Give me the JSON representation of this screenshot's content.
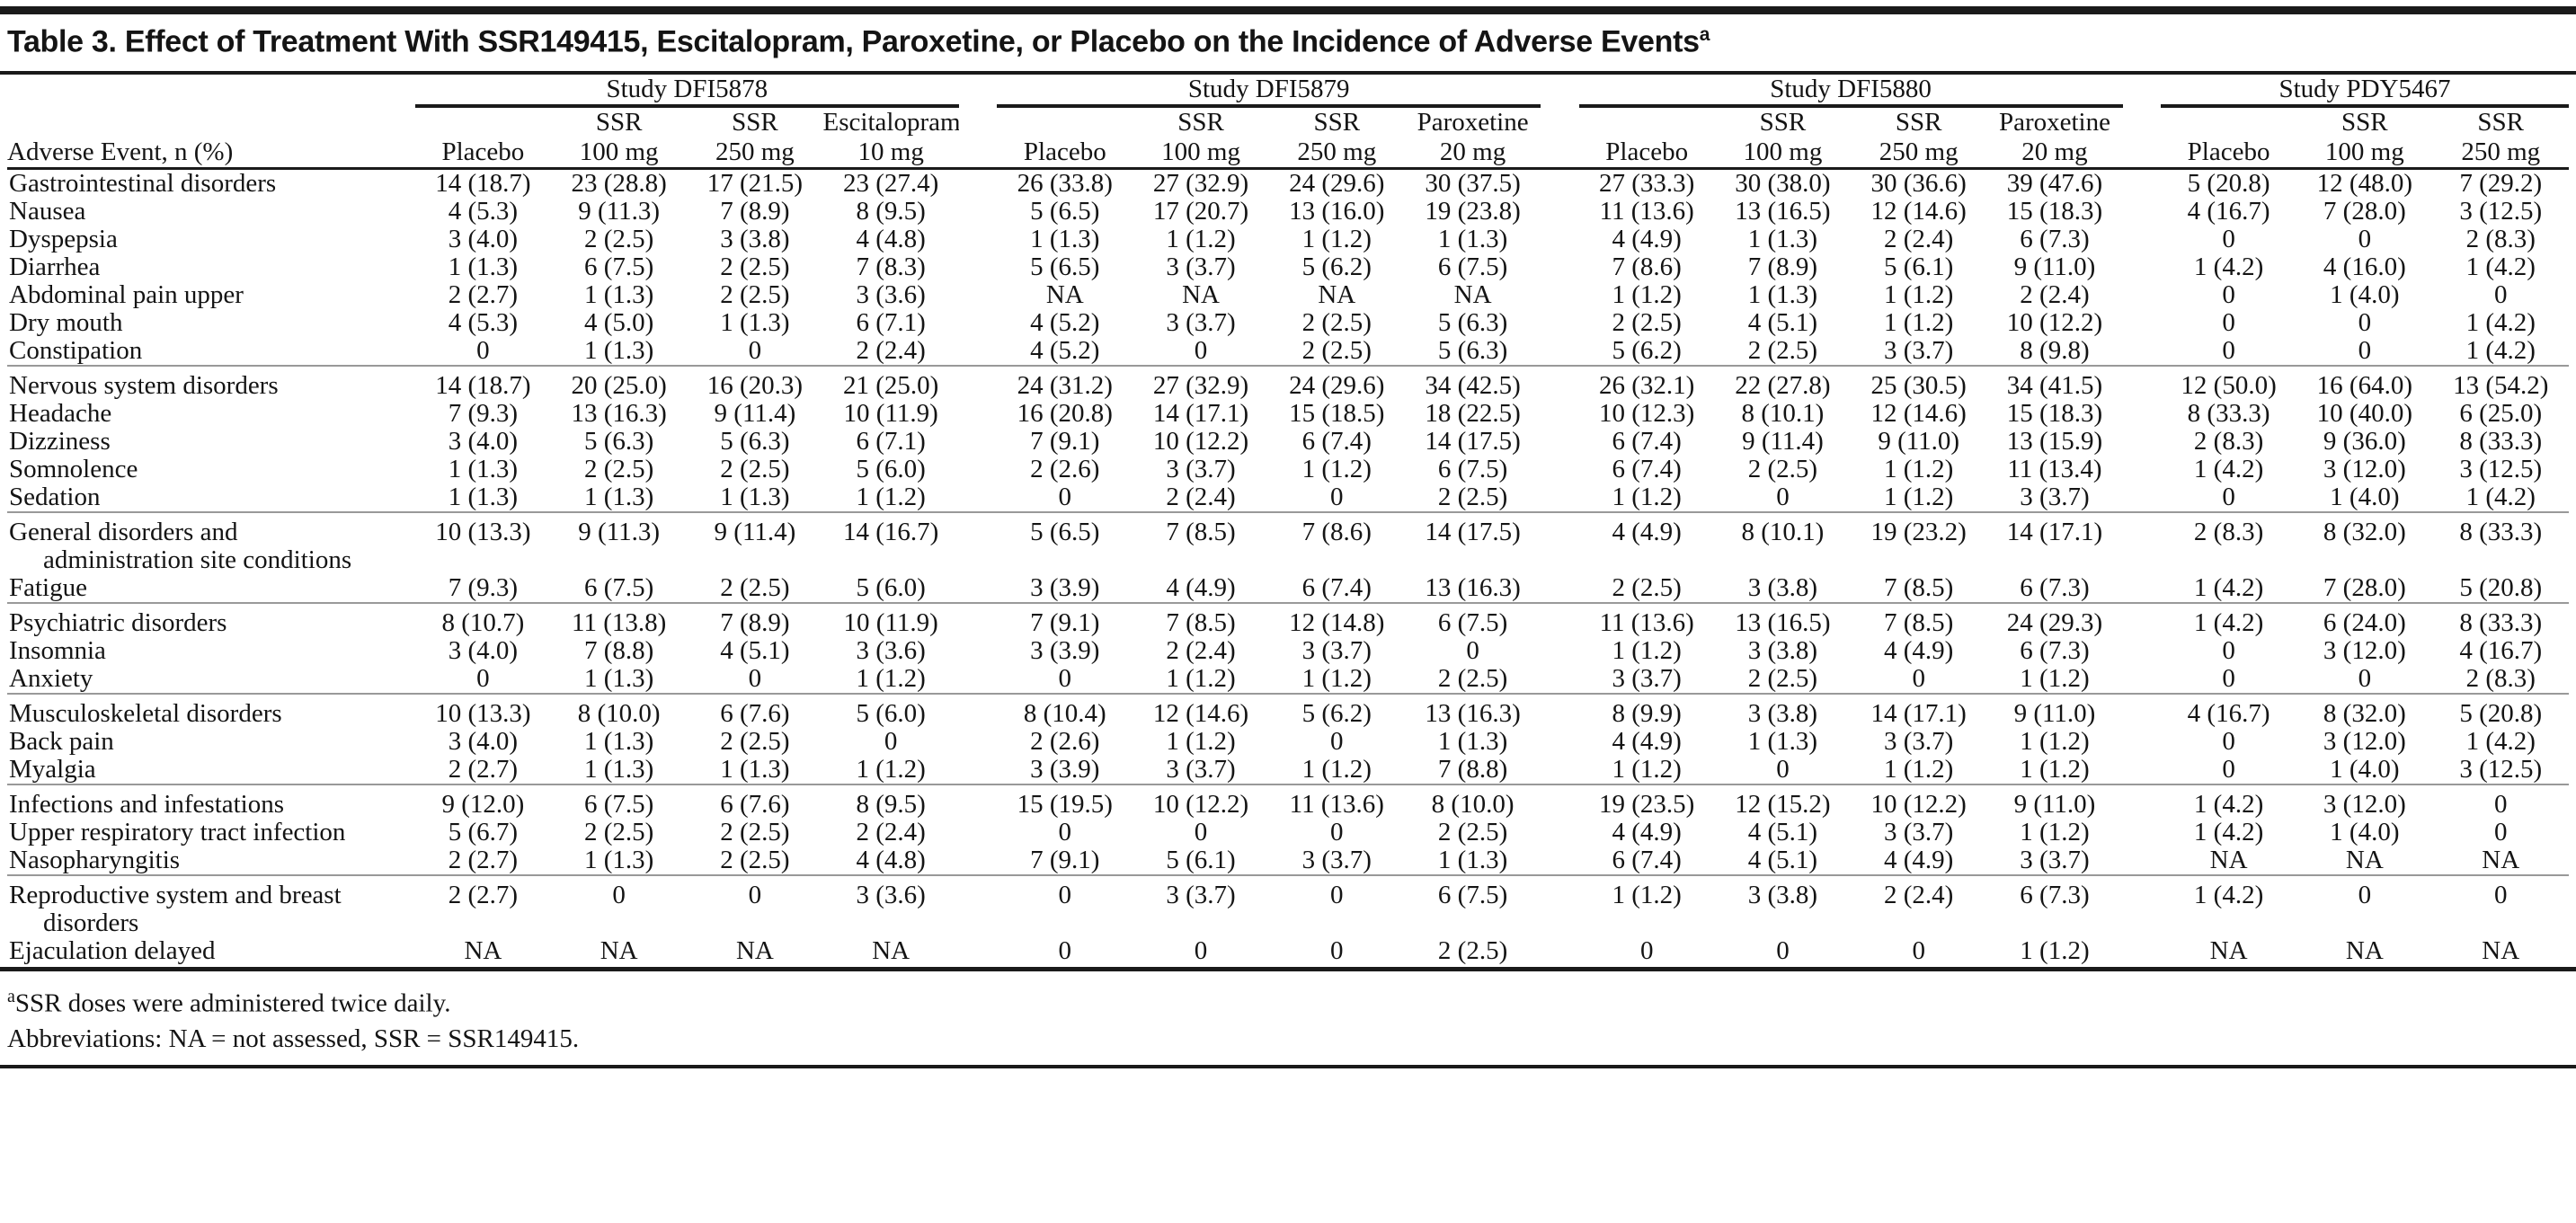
{
  "page": {
    "title": "Table 3. Effect of Treatment With SSR149415, Escitalopram, Paroxetine, or Placebo on the Incidence of Adverse Events",
    "title_superscript": "a"
  },
  "colors": {
    "rule_black": "#1a1a1a",
    "rule_gray": "#999999",
    "text": "#141414",
    "background": "#ffffff"
  },
  "table": {
    "row_header": "Adverse Event, n (%)",
    "groups": [
      {
        "study": "Study DFI5878",
        "columns": [
          {
            "drug": "",
            "dose": "Placebo"
          },
          {
            "drug": "SSR",
            "dose": "100 mg"
          },
          {
            "drug": "SSR",
            "dose": "250 mg"
          },
          {
            "drug": "Escitalopram",
            "dose": "10 mg"
          }
        ]
      },
      {
        "study": "Study DFI5879",
        "columns": [
          {
            "drug": "",
            "dose": "Placebo"
          },
          {
            "drug": "SSR",
            "dose": "100 mg"
          },
          {
            "drug": "SSR",
            "dose": "250 mg"
          },
          {
            "drug": "Paroxetine",
            "dose": "20 mg"
          }
        ]
      },
      {
        "study": "Study DFI5880",
        "columns": [
          {
            "drug": "",
            "dose": "Placebo"
          },
          {
            "drug": "SSR",
            "dose": "100 mg"
          },
          {
            "drug": "SSR",
            "dose": "250 mg"
          },
          {
            "drug": "Paroxetine",
            "dose": "20 mg"
          }
        ]
      },
      {
        "study": "Study PDY5467",
        "columns": [
          {
            "drug": "",
            "dose": "Placebo"
          },
          {
            "drug": "SSR",
            "dose": "100 mg"
          },
          {
            "drug": "SSR",
            "dose": "250 mg"
          }
        ]
      }
    ],
    "sections": [
      {
        "rows": [
          {
            "label": "Gastrointestinal disorders",
            "label2": "",
            "values": [
              "14 (18.7)",
              "23 (28.8)",
              "17 (21.5)",
              "23 (27.4)",
              "26 (33.8)",
              "27 (32.9)",
              "24 (29.6)",
              "30 (37.5)",
              "27 (33.3)",
              "30 (38.0)",
              "30 (36.6)",
              "39 (47.6)",
              "5 (20.8)",
              "12 (48.0)",
              "7 (29.2)"
            ]
          },
          {
            "label": "Nausea",
            "label2": "",
            "values": [
              "4 (5.3)",
              "9 (11.3)",
              "7 (8.9)",
              "8 (9.5)",
              "5 (6.5)",
              "17 (20.7)",
              "13 (16.0)",
              "19 (23.8)",
              "11 (13.6)",
              "13 (16.5)",
              "12 (14.6)",
              "15 (18.3)",
              "4 (16.7)",
              "7 (28.0)",
              "3 (12.5)"
            ]
          },
          {
            "label": "Dyspepsia",
            "label2": "",
            "values": [
              "3 (4.0)",
              "2 (2.5)",
              "3 (3.8)",
              "4 (4.8)",
              "1 (1.3)",
              "1 (1.2)",
              "1 (1.2)",
              "1 (1.3)",
              "4 (4.9)",
              "1 (1.3)",
              "2 (2.4)",
              "6 (7.3)",
              "0",
              "0",
              "2 (8.3)"
            ]
          },
          {
            "label": "Diarrhea",
            "label2": "",
            "values": [
              "1 (1.3)",
              "6 (7.5)",
              "2 (2.5)",
              "7 (8.3)",
              "5 (6.5)",
              "3 (3.7)",
              "5 (6.2)",
              "6 (7.5)",
              "7 (8.6)",
              "7 (8.9)",
              "5 (6.1)",
              "9 (11.0)",
              "1 (4.2)",
              "4 (16.0)",
              "1 (4.2)"
            ]
          },
          {
            "label": "Abdominal pain upper",
            "label2": "",
            "values": [
              "2 (2.7)",
              "1 (1.3)",
              "2 (2.5)",
              "3 (3.6)",
              "NA",
              "NA",
              "NA",
              "NA",
              "1 (1.2)",
              "1 (1.3)",
              "1 (1.2)",
              "2 (2.4)",
              "0",
              "1 (4.0)",
              "0"
            ]
          },
          {
            "label": "Dry mouth",
            "label2": "",
            "values": [
              "4 (5.3)",
              "4 (5.0)",
              "1 (1.3)",
              "6 (7.1)",
              "4 (5.2)",
              "3 (3.7)",
              "2 (2.5)",
              "5 (6.3)",
              "2 (2.5)",
              "4 (5.1)",
              "1 (1.2)",
              "10 (12.2)",
              "0",
              "0",
              "1 (4.2)"
            ]
          },
          {
            "label": "Constipation",
            "label2": "",
            "values": [
              "0",
              "1 (1.3)",
              "0",
              "2 (2.4)",
              "4 (5.2)",
              "0",
              "2 (2.5)",
              "5 (6.3)",
              "5 (6.2)",
              "2 (2.5)",
              "3 (3.7)",
              "8 (9.8)",
              "0",
              "0",
              "1 (4.2)"
            ]
          }
        ]
      },
      {
        "rows": [
          {
            "label": "Nervous system disorders",
            "label2": "",
            "values": [
              "14 (18.7)",
              "20 (25.0)",
              "16 (20.3)",
              "21 (25.0)",
              "24 (31.2)",
              "27 (32.9)",
              "24 (29.6)",
              "34 (42.5)",
              "26 (32.1)",
              "22 (27.8)",
              "25 (30.5)",
              "34 (41.5)",
              "12 (50.0)",
              "16 (64.0)",
              "13 (54.2)"
            ]
          },
          {
            "label": "Headache",
            "label2": "",
            "values": [
              "7 (9.3)",
              "13 (16.3)",
              "9 (11.4)",
              "10 (11.9)",
              "16 (20.8)",
              "14 (17.1)",
              "15 (18.5)",
              "18 (22.5)",
              "10 (12.3)",
              "8 (10.1)",
              "12 (14.6)",
              "15 (18.3)",
              "8 (33.3)",
              "10 (40.0)",
              "6 (25.0)"
            ]
          },
          {
            "label": "Dizziness",
            "label2": "",
            "values": [
              "3 (4.0)",
              "5 (6.3)",
              "5 (6.3)",
              "6 (7.1)",
              "7 (9.1)",
              "10 (12.2)",
              "6 (7.4)",
              "14 (17.5)",
              "6 (7.4)",
              "9 (11.4)",
              "9 (11.0)",
              "13 (15.9)",
              "2 (8.3)",
              "9 (36.0)",
              "8 (33.3)"
            ]
          },
          {
            "label": "Somnolence",
            "label2": "",
            "values": [
              "1 (1.3)",
              "2 (2.5)",
              "2 (2.5)",
              "5 (6.0)",
              "2 (2.6)",
              "3 (3.7)",
              "1 (1.2)",
              "6 (7.5)",
              "6 (7.4)",
              "2 (2.5)",
              "1 (1.2)",
              "11 (13.4)",
              "1 (4.2)",
              "3 (12.0)",
              "3 (12.5)"
            ]
          },
          {
            "label": "Sedation",
            "label2": "",
            "values": [
              "1 (1.3)",
              "1 (1.3)",
              "1 (1.3)",
              "1 (1.2)",
              "0",
              "2 (2.4)",
              "0",
              "2 (2.5)",
              "1 (1.2)",
              "0",
              "1 (1.2)",
              "3 (3.7)",
              "0",
              "1 (4.0)",
              "1 (4.2)"
            ]
          }
        ]
      },
      {
        "rows": [
          {
            "label": "General disorders and",
            "label2": "administration site conditions",
            "values": [
              "10 (13.3)",
              "9 (11.3)",
              "9 (11.4)",
              "14 (16.7)",
              "5 (6.5)",
              "7 (8.5)",
              "7 (8.6)",
              "14 (17.5)",
              "4 (4.9)",
              "8 (10.1)",
              "19 (23.2)",
              "14 (17.1)",
              "2 (8.3)",
              "8 (32.0)",
              "8 (33.3)"
            ]
          },
          {
            "label": "Fatigue",
            "label2": "",
            "values": [
              "7 (9.3)",
              "6 (7.5)",
              "2 (2.5)",
              "5 (6.0)",
              "3 (3.9)",
              "4 (4.9)",
              "6 (7.4)",
              "13 (16.3)",
              "2 (2.5)",
              "3 (3.8)",
              "7 (8.5)",
              "6 (7.3)",
              "1 (4.2)",
              "7 (28.0)",
              "5 (20.8)"
            ]
          }
        ]
      },
      {
        "rows": [
          {
            "label": "Psychiatric disorders",
            "label2": "",
            "values": [
              "8 (10.7)",
              "11 (13.8)",
              "7 (8.9)",
              "10 (11.9)",
              "7 (9.1)",
              "7 (8.5)",
              "12 (14.8)",
              "6 (7.5)",
              "11 (13.6)",
              "13 (16.5)",
              "7 (8.5)",
              "24 (29.3)",
              "1 (4.2)",
              "6 (24.0)",
              "8 (33.3)"
            ]
          },
          {
            "label": "Insomnia",
            "label2": "",
            "values": [
              "3 (4.0)",
              "7 (8.8)",
              "4 (5.1)",
              "3 (3.6)",
              "3 (3.9)",
              "2 (2.4)",
              "3 (3.7)",
              "0",
              "1 (1.2)",
              "3 (3.8)",
              "4 (4.9)",
              "6 (7.3)",
              "0",
              "3 (12.0)",
              "4 (16.7)"
            ]
          },
          {
            "label": "Anxiety",
            "label2": "",
            "values": [
              "0",
              "1 (1.3)",
              "0",
              "1 (1.2)",
              "0",
              "1 (1.2)",
              "1 (1.2)",
              "2 (2.5)",
              "3 (3.7)",
              "2 (2.5)",
              "0",
              "1 (1.2)",
              "0",
              "0",
              "2 (8.3)"
            ]
          }
        ]
      },
      {
        "rows": [
          {
            "label": "Musculoskeletal disorders",
            "label2": "",
            "values": [
              "10 (13.3)",
              "8 (10.0)",
              "6 (7.6)",
              "5 (6.0)",
              "8 (10.4)",
              "12 (14.6)",
              "5 (6.2)",
              "13 (16.3)",
              "8 (9.9)",
              "3 (3.8)",
              "14 (17.1)",
              "9 (11.0)",
              "4 (16.7)",
              "8 (32.0)",
              "5 (20.8)"
            ]
          },
          {
            "label": "Back pain",
            "label2": "",
            "values": [
              "3 (4.0)",
              "1 (1.3)",
              "2 (2.5)",
              "0",
              "2 (2.6)",
              "1 (1.2)",
              "0",
              "1 (1.3)",
              "4 (4.9)",
              "1 (1.3)",
              "3 (3.7)",
              "1 (1.2)",
              "0",
              "3 (12.0)",
              "1 (4.2)"
            ]
          },
          {
            "label": "Myalgia",
            "label2": "",
            "values": [
              "2 (2.7)",
              "1 (1.3)",
              "1 (1.3)",
              "1 (1.2)",
              "3 (3.9)",
              "3 (3.7)",
              "1 (1.2)",
              "7 (8.8)",
              "1 (1.2)",
              "0",
              "1 (1.2)",
              "1 (1.2)",
              "0",
              "1 (4.0)",
              "3 (12.5)"
            ]
          }
        ]
      },
      {
        "rows": [
          {
            "label": "Infections and infestations",
            "label2": "",
            "values": [
              "9 (12.0)",
              "6 (7.5)",
              "6 (7.6)",
              "8 (9.5)",
              "15 (19.5)",
              "10 (12.2)",
              "11 (13.6)",
              "8 (10.0)",
              "19 (23.5)",
              "12 (15.2)",
              "10 (12.2)",
              "9 (11.0)",
              "1 (4.2)",
              "3 (12.0)",
              "0"
            ]
          },
          {
            "label": "Upper respiratory tract infection",
            "label2": "",
            "values": [
              "5 (6.7)",
              "2 (2.5)",
              "2 (2.5)",
              "2 (2.4)",
              "0",
              "0",
              "0",
              "2 (2.5)",
              "4 (4.9)",
              "4 (5.1)",
              "3 (3.7)",
              "1 (1.2)",
              "1 (4.2)",
              "1 (4.0)",
              "0"
            ]
          },
          {
            "label": "Nasopharyngitis",
            "label2": "",
            "values": [
              "2 (2.7)",
              "1 (1.3)",
              "2 (2.5)",
              "4 (4.8)",
              "7 (9.1)",
              "5 (6.1)",
              "3 (3.7)",
              "1 (1.3)",
              "6 (7.4)",
              "4 (5.1)",
              "4 (4.9)",
              "3 (3.7)",
              "NA",
              "NA",
              "NA"
            ]
          }
        ]
      },
      {
        "rows": [
          {
            "label": "Reproductive system and breast",
            "label2": "disorders",
            "values": [
              "2 (2.7)",
              "0",
              "0",
              "3 (3.6)",
              "0",
              "3 (3.7)",
              "0",
              "6 (7.5)",
              "1 (1.2)",
              "3 (3.8)",
              "2 (2.4)",
              "6 (7.3)",
              "1 (4.2)",
              "0",
              "0"
            ]
          },
          {
            "label": "Ejaculation delayed",
            "label2": "",
            "values": [
              "NA",
              "NA",
              "NA",
              "NA",
              "0",
              "0",
              "0",
              "2 (2.5)",
              "0",
              "0",
              "0",
              "1 (1.2)",
              "NA",
              "NA",
              "NA"
            ]
          }
        ]
      }
    ]
  },
  "footnotes": [
    {
      "sup": "a",
      "text": "SSR doses were administered twice daily."
    },
    {
      "sup": "",
      "text": "Abbreviations: NA = not assessed, SSR = SSR149415."
    }
  ]
}
